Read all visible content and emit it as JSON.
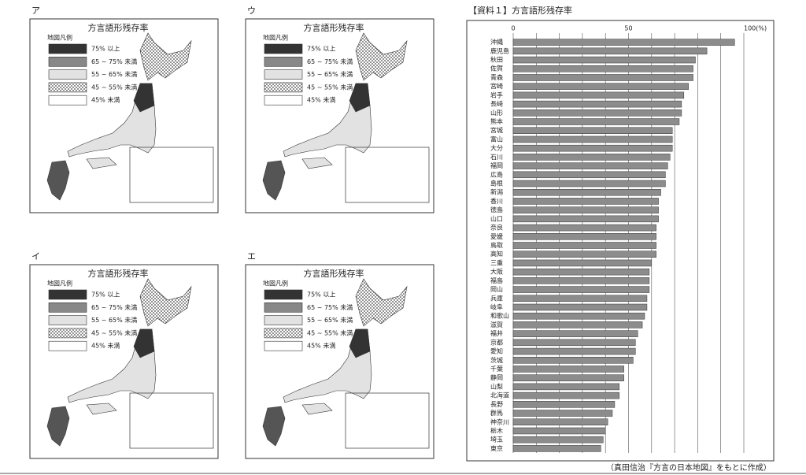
{
  "panels": [
    {
      "label": "ア",
      "title": "方言語形残存率",
      "legend_title": "地図凡例",
      "legend": [
        "75% 以上",
        "65 ~ 75% 未満",
        "55 ~ 65% 未満",
        "45 ~ 55% 未満",
        "45% 未満"
      ]
    },
    {
      "label": "ウ",
      "title": "方言語形残存率",
      "legend_title": "地図凡例",
      "legend": [
        "75% 以上",
        "65 ~ 75% 未満",
        "55 ~ 65% 未満",
        "45 ~ 55% 未満",
        "45% 未満"
      ]
    },
    {
      "label": "イ",
      "title": "方言語形残存率",
      "legend_title": "地図凡例",
      "legend": [
        "75% 以上",
        "65 ~ 75% 未満",
        "55 ~ 65% 未満",
        "45 ~ 55% 未満",
        "45% 未満"
      ]
    },
    {
      "label": "エ",
      "title": "方言語形残存率",
      "legend_title": "地図凡例",
      "legend": [
        "75% 以上",
        "65 ~ 75% 未満",
        "55 ~ 65% 未満",
        "45 ~ 55% 未満",
        "45% 未満"
      ]
    }
  ],
  "chart_data": {
    "type": "hbar",
    "title": "【資料１】方言語形残存率",
    "categories": [
      "沖縄",
      "鹿児島",
      "秋田",
      "佐賀",
      "青森",
      "宮崎",
      "岩手",
      "長崎",
      "山形",
      "熊本",
      "宮城",
      "富山",
      "大分",
      "石川",
      "福岡",
      "広島",
      "島根",
      "新潟",
      "香川",
      "徳島",
      "山口",
      "奈良",
      "愛媛",
      "鳥取",
      "高知",
      "三重",
      "大阪",
      "福島",
      "岡山",
      "兵庫",
      "岐阜",
      "和歌山",
      "滋賀",
      "福井",
      "京都",
      "愛知",
      "茨城",
      "千葉",
      "静岡",
      "山梨",
      "北海道",
      "長野",
      "群馬",
      "神奈川",
      "栃木",
      "埼玉",
      "東京"
    ],
    "values": [
      96,
      84,
      79,
      78,
      78,
      76,
      74,
      73,
      73,
      72,
      69,
      69,
      69,
      68,
      67,
      66,
      66,
      64,
      63,
      63,
      63,
      62,
      62,
      62,
      62,
      60,
      59,
      59,
      59,
      58,
      58,
      57,
      56,
      54,
      53,
      53,
      52,
      48,
      48,
      46,
      46,
      44,
      43,
      41,
      40,
      39,
      38
    ],
    "color": "#8c8c8c",
    "xlim": [
      0,
      100
    ],
    "xticks": [
      0,
      50,
      {
        "value": 100,
        "label": "100(%)"
      }
    ],
    "minor_ticks": [
      10,
      20,
      30,
      40,
      60,
      70,
      80,
      90
    ],
    "grid": true
  },
  "source": "（真田信治『方言の日本地図』をもとに作成）"
}
